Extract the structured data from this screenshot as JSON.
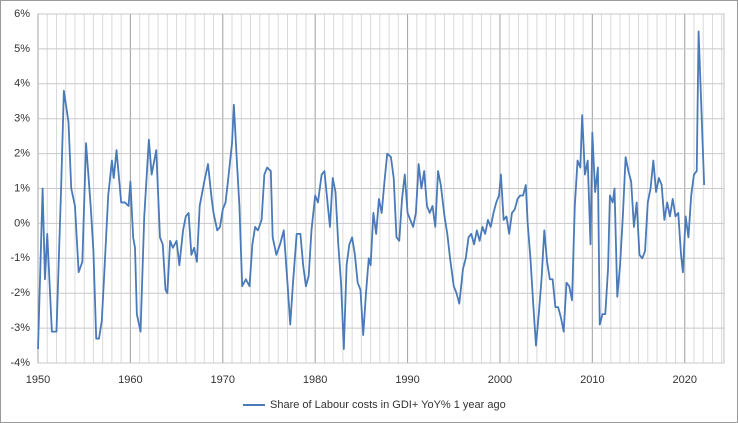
{
  "chart_data": {
    "type": "line",
    "x": [
      1950,
      1950.5,
      1950.75,
      1951,
      1951.5,
      1952,
      1952.5,
      1952.8,
      1953.3,
      1953.6,
      1954,
      1954.4,
      1954.8,
      1955.2,
      1955.7,
      1956,
      1956.3,
      1956.6,
      1956.9,
      1957.2,
      1957.6,
      1958,
      1958.2,
      1958.5,
      1959,
      1959.4,
      1959.8,
      1960,
      1960.3,
      1960.5,
      1960.7,
      1961.1,
      1961.5,
      1962,
      1962.3,
      1962.8,
      1963.2,
      1963.5,
      1963.8,
      1964,
      1964.3,
      1964.6,
      1965,
      1965.3,
      1965.7,
      1966,
      1966.3,
      1966.6,
      1966.9,
      1967.2,
      1967.5,
      1968,
      1968.4,
      1968.8,
      1969,
      1969.4,
      1969.7,
      1970,
      1970.3,
      1970.6,
      1971,
      1971.2,
      1971.5,
      1971.8,
      1972.1,
      1972.5,
      1972.9,
      1973.2,
      1973.5,
      1973.8,
      1974.2,
      1974.5,
      1974.8,
      1975.2,
      1975.4,
      1975.8,
      1976.2,
      1976.6,
      1977,
      1977.3,
      1977.6,
      1978,
      1978.4,
      1978.7,
      1979,
      1979.3,
      1979.6,
      1980,
      1980.3,
      1980.7,
      1981,
      1981.3,
      1981.6,
      1981.9,
      1982.2,
      1982.5,
      1982.8,
      1983.1,
      1983.4,
      1983.7,
      1984,
      1984.3,
      1984.6,
      1984.9,
      1985.2,
      1985.5,
      1985.8,
      1986,
      1986.3,
      1986.6,
      1986.9,
      1987.2,
      1987.5,
      1987.8,
      1988.2,
      1988.5,
      1988.8,
      1989.1,
      1989.4,
      1989.7,
      1990,
      1990.3,
      1990.6,
      1990.9,
      1991.2,
      1991.5,
      1991.8,
      1992.1,
      1992.4,
      1992.7,
      1993,
      1993.3,
      1993.6,
      1994,
      1994.3,
      1994.6,
      1995,
      1995.3,
      1995.6,
      1996,
      1996.3,
      1996.6,
      1996.9,
      1997.2,
      1997.5,
      1997.8,
      1998.1,
      1998.4,
      1998.7,
      1999,
      1999.3,
      1999.6,
      1999.9,
      2000.1,
      2000.4,
      2000.7,
      2001,
      2001.3,
      2001.6,
      2001.9,
      2002.2,
      2002.5,
      2002.8,
      2003,
      2003.3,
      2003.6,
      2003.9,
      2004.2,
      2004.5,
      2004.8,
      2005.1,
      2005.4,
      2005.7,
      2006,
      2006.3,
      2006.6,
      2006.9,
      2007.2,
      2007.5,
      2007.8,
      2008.1,
      2008.4,
      2008.7,
      2008.9,
      2009.2,
      2009.5,
      2009.8,
      2010,
      2010.3,
      2010.6,
      2010.8,
      2011.1,
      2011.4,
      2011.7,
      2011.9,
      2012.2,
      2012.4,
      2012.7,
      2013,
      2013.3,
      2013.6,
      2013.9,
      2014.2,
      2014.5,
      2014.8,
      2015.1,
      2015.4,
      2015.7,
      2016,
      2016.3,
      2016.6,
      2016.9,
      2017.2,
      2017.5,
      2017.8,
      2018.1,
      2018.4,
      2018.7,
      2019,
      2019.3,
      2019.6,
      2019.8,
      2020.1,
      2020.4,
      2020.7,
      2021,
      2021.3,
      2021.5,
      2021.8,
      2022.1
    ],
    "series": [
      {
        "name": "Share of Labour costs in GDI+ YoY% 1 year ago",
        "color": "#4a7ab8",
        "values": [
          -3.6,
          1.0,
          -1.6,
          -0.3,
          -3.1,
          -3.1,
          1.0,
          3.8,
          2.9,
          1.0,
          0.5,
          -1.4,
          -1.1,
          2.3,
          0.5,
          -0.8,
          -3.3,
          -3.3,
          -2.8,
          -1.3,
          0.8,
          1.8,
          1.3,
          2.1,
          0.6,
          0.6,
          0.5,
          1.2,
          -0.4,
          -0.7,
          -2.6,
          -3.1,
          0.2,
          2.4,
          1.4,
          2.1,
          -0.4,
          -0.6,
          -1.9,
          -2.0,
          -0.5,
          -0.7,
          -0.5,
          -1.2,
          -0.2,
          0.2,
          0.3,
          -0.9,
          -0.7,
          -1.1,
          0.5,
          1.2,
          1.7,
          0.7,
          0.3,
          -0.2,
          -0.1,
          0.4,
          0.6,
          1.3,
          2.3,
          3.4,
          1.9,
          0.5,
          -1.8,
          -1.6,
          -1.8,
          -0.6,
          -0.1,
          -0.2,
          0.1,
          1.4,
          1.6,
          1.5,
          -0.4,
          -0.9,
          -0.6,
          -0.2,
          -1.7,
          -2.9,
          -1.7,
          -0.3,
          -0.3,
          -1.2,
          -1.8,
          -1.5,
          -0.2,
          0.8,
          0.6,
          1.4,
          1.5,
          0.7,
          -0.1,
          1.3,
          0.9,
          -0.6,
          -1.7,
          -3.6,
          -1.2,
          -0.6,
          -0.4,
          -0.9,
          -1.7,
          -1.9,
          -3.2,
          -2.0,
          -1.0,
          -1.2,
          0.3,
          -0.3,
          0.7,
          0.3,
          1.2,
          2.0,
          1.9,
          1.3,
          -0.4,
          -0.5,
          0.7,
          1.4,
          0.3,
          0.1,
          -0.1,
          0.3,
          1.7,
          1.0,
          1.5,
          0.5,
          0.3,
          0.5,
          -0.1,
          1.5,
          1.1,
          0.2,
          -0.3,
          -1.0,
          -1.8,
          -2.0,
          -2.3,
          -1.3,
          -1.0,
          -0.4,
          -0.3,
          -0.6,
          -0.2,
          -0.5,
          -0.1,
          -0.3,
          0.1,
          -0.1,
          0.3,
          0.6,
          0.8,
          1.4,
          0.1,
          0.2,
          -0.3,
          0.3,
          0.4,
          0.7,
          0.8,
          0.8,
          1.1,
          0.0,
          -1.0,
          -2.3,
          -3.5,
          -2.6,
          -1.6,
          -0.2,
          -1.1,
          -1.6,
          -1.6,
          -2.4,
          -2.4,
          -2.7,
          -3.1,
          -1.7,
          -1.8,
          -2.2,
          0.5,
          1.8,
          1.6,
          3.1,
          1.4,
          1.8,
          -0.6,
          2.6,
          0.9,
          1.6,
          -2.9,
          -2.6,
          -2.6,
          -1.3,
          0.8,
          0.6,
          1.0,
          -2.1,
          -1.2,
          0.2,
          1.9,
          1.5,
          1.2,
          -0.1,
          0.6,
          -0.9,
          -1.0,
          -0.8,
          0.6,
          1.0,
          1.8,
          0.9,
          1.3,
          1.1,
          0.1,
          0.6,
          0.2,
          0.7,
          0.2,
          0.3,
          -0.9,
          -1.4,
          0.2,
          -0.4,
          0.8,
          1.4,
          1.5,
          5.5,
          3.3,
          1.1
        ]
      }
    ],
    "xlim": [
      1950,
      2024.25
    ],
    "xticks": [
      1950,
      1960,
      1970,
      1980,
      1990,
      2000,
      2010,
      2020
    ],
    "ylim": [
      -4,
      6
    ],
    "yticks": [
      {
        "value": -4,
        "label": "-4%"
      },
      {
        "value": -3,
        "label": "-3%"
      },
      {
        "value": -2,
        "label": "-2%"
      },
      {
        "value": -1,
        "label": "-1%"
      },
      {
        "value": 0,
        "label": "0%"
      },
      {
        "value": 1,
        "label": "1%"
      },
      {
        "value": 2,
        "label": "2%"
      },
      {
        "value": 3,
        "label": "3%"
      },
      {
        "value": 4,
        "label": "4%"
      },
      {
        "value": 5,
        "label": "5%"
      },
      {
        "value": 6,
        "label": "6%"
      }
    ],
    "grid": true,
    "legend": "bottom"
  }
}
